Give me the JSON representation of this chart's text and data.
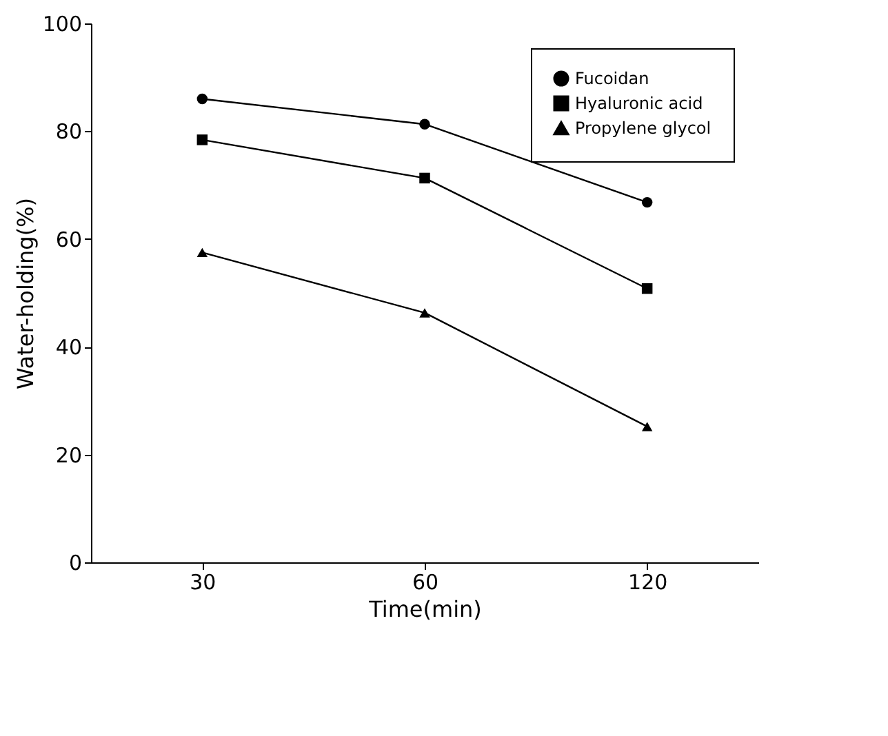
{
  "chart_data": {
    "type": "line",
    "xlabel": "Time(min)",
    "ylabel": "Water-holding(%)",
    "categories": [
      "30",
      "60",
      "120"
    ],
    "series": [
      {
        "name": "Fucoidan",
        "color": "#000000",
        "marker": "circle",
        "values": [
          86.0,
          81.3,
          66.8
        ]
      },
      {
        "name": "Hyaluronic acid",
        "color": "#000000",
        "marker": "square",
        "values": [
          78.4,
          71.3,
          50.8
        ]
      },
      {
        "name": "Propylene glycol",
        "color": "#000000",
        "marker": "triangle",
        "values": [
          57.5,
          46.3,
          25.2
        ]
      }
    ],
    "ylim": [
      0,
      100
    ],
    "yticks": [
      0,
      20,
      40,
      60,
      80,
      100
    ],
    "grid": false,
    "legend": "top right",
    "line_style": "solid"
  }
}
